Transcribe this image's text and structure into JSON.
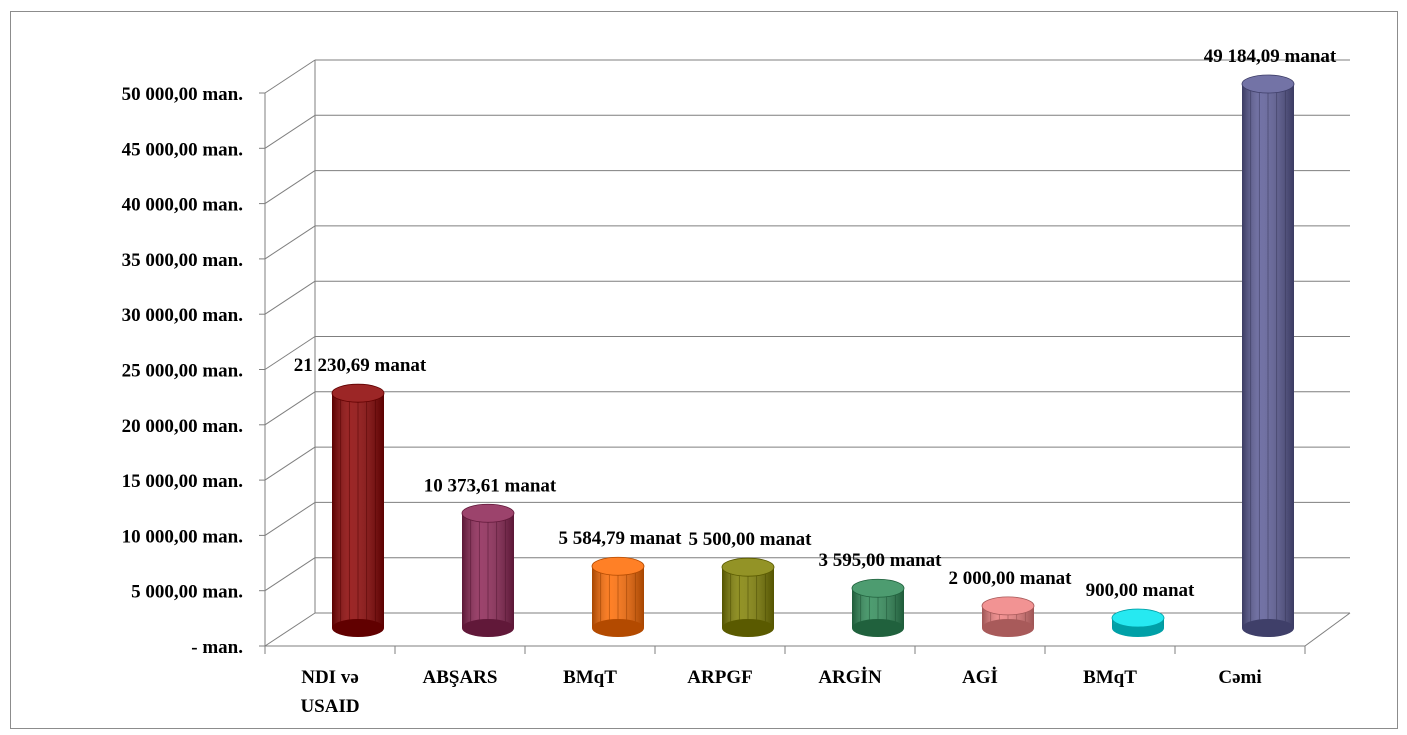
{
  "chart_data": {
    "type": "bar",
    "categories": [
      [
        "NDI və",
        "USAID"
      ],
      [
        "ABŞARS"
      ],
      [
        "BMqT"
      ],
      [
        "ARPGF"
      ],
      [
        "ARGİN"
      ],
      [
        "AGİ"
      ],
      [
        "BMqT"
      ],
      [
        "Cəmi"
      ]
    ],
    "values": [
      21230.69,
      10373.61,
      5584.79,
      5500.0,
      3595.0,
      2000.0,
      900.0,
      49184.09
    ],
    "data_labels": [
      "21 230,69 manat",
      "10 373,61 manat",
      "5 584,79 manat",
      "5 500,00 manat",
      "3 595,00 manat",
      "2 000,00 manat",
      "900,00 manat",
      "49 184,09 manat"
    ],
    "colors": [
      "#8b0000",
      "#8b2252",
      "#ff6a00",
      "#808000",
      "#2e8b57",
      "#f08080",
      "#00e5ee",
      "#5a5a96"
    ],
    "y_tick_labels": [
      "-    man.",
      "5 000,00 man.",
      "10 000,00 man.",
      "15 000,00 man.",
      "20 000,00 man.",
      "25 000,00 man.",
      "30 000,00 man.",
      "35 000,00 man.",
      "40 000,00 man.",
      "45 000,00 man.",
      "50 000,00 man."
    ],
    "ylim": [
      0,
      50000
    ],
    "y_tick_step": 5000,
    "grid": true,
    "style": "3d-cylinder",
    "title": "",
    "xlabel": "",
    "ylabel": ""
  }
}
